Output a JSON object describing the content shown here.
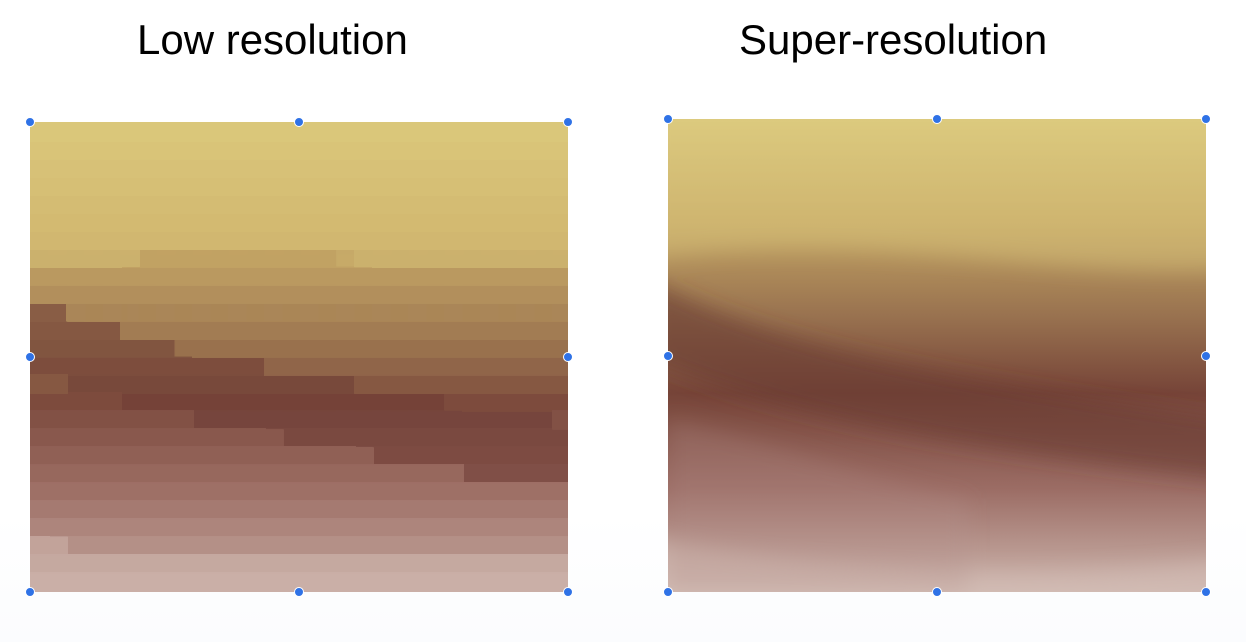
{
  "panels": {
    "low": {
      "title": "Low resolution"
    },
    "super": {
      "title": "Super-resolution"
    }
  },
  "colors": {
    "top_light": "#dccc7a",
    "mid_gold": "#b89559",
    "dark_band": "#6e3e35",
    "lower_mauve": "#9a6a62",
    "bottom_light": "#c9b1a8",
    "handle": "#2f72e6"
  }
}
